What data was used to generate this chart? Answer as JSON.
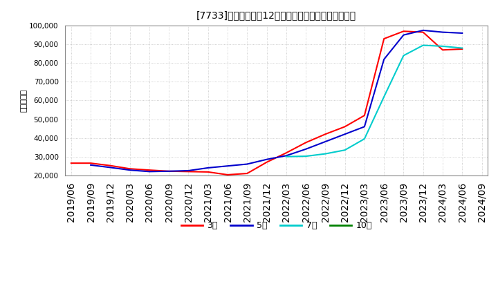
{
  "title": "[7733]　当期純利益12か月移動合計の標準偏差の推移",
  "ylabel": "（百万円）",
  "ylim": [
    20000,
    100000
  ],
  "yticks": [
    20000,
    30000,
    40000,
    50000,
    60000,
    70000,
    80000,
    90000,
    100000
  ],
  "background_color": "#ffffff",
  "grid_color": "#bbbbbb",
  "series": {
    "3年": {
      "color": "#ff0000",
      "data": [
        [
          "2019/06",
          26500
        ],
        [
          "2019/09",
          26500
        ],
        [
          "2019/12",
          25200
        ],
        [
          "2020/03",
          23500
        ],
        [
          "2020/06",
          22800
        ],
        [
          "2020/09",
          22200
        ],
        [
          "2020/12",
          22000
        ],
        [
          "2021/03",
          21800
        ],
        [
          "2021/06",
          20300
        ],
        [
          "2021/09",
          21000
        ],
        [
          "2021/12",
          27000
        ],
        [
          "2022/03",
          32000
        ],
        [
          "2022/06",
          37500
        ],
        [
          "2022/09",
          42000
        ],
        [
          "2022/12",
          46000
        ],
        [
          "2023/03",
          52000
        ],
        [
          "2023/06",
          93000
        ],
        [
          "2023/09",
          97000
        ],
        [
          "2023/12",
          96500
        ],
        [
          "2024/03",
          87000
        ],
        [
          "2024/06",
          87500
        ]
      ]
    },
    "5年": {
      "color": "#0000cc",
      "data": [
        [
          "2019/09",
          25500
        ],
        [
          "2019/12",
          24200
        ],
        [
          "2020/03",
          22800
        ],
        [
          "2020/06",
          22000
        ],
        [
          "2020/09",
          22200
        ],
        [
          "2020/12",
          22500
        ],
        [
          "2021/03",
          24000
        ],
        [
          "2021/06",
          25000
        ],
        [
          "2021/09",
          26000
        ],
        [
          "2021/12",
          28500
        ],
        [
          "2022/03",
          30500
        ],
        [
          "2022/06",
          34000
        ],
        [
          "2022/09",
          38000
        ],
        [
          "2022/12",
          42000
        ],
        [
          "2023/03",
          46000
        ],
        [
          "2023/06",
          82000
        ],
        [
          "2023/09",
          95000
        ],
        [
          "2023/12",
          97500
        ],
        [
          "2024/03",
          96500
        ],
        [
          "2024/06",
          96000
        ]
      ]
    },
    "7年": {
      "color": "#00cccc",
      "data": [
        [
          "2022/03",
          30000
        ],
        [
          "2022/06",
          30200
        ],
        [
          "2022/09",
          31500
        ],
        [
          "2022/12",
          33500
        ],
        [
          "2023/03",
          39500
        ],
        [
          "2023/06",
          62000
        ],
        [
          "2023/09",
          84000
        ],
        [
          "2023/12",
          89500
        ],
        [
          "2024/03",
          89000
        ],
        [
          "2024/06",
          88000
        ]
      ]
    },
    "10年": {
      "color": "#008000",
      "data": []
    }
  },
  "legend_labels": [
    "3年",
    "5年",
    "7年",
    "10年"
  ],
  "legend_colors": [
    "#ff0000",
    "#0000cc",
    "#00cccc",
    "#008000"
  ],
  "xtick_labels": [
    "2019/06",
    "2019/09",
    "2019/12",
    "2020/03",
    "2020/06",
    "2020/09",
    "2020/12",
    "2021/03",
    "2021/06",
    "2021/09",
    "2021/12",
    "2022/03",
    "2022/06",
    "2022/09",
    "2022/12",
    "2023/03",
    "2023/06",
    "2023/09",
    "2023/12",
    "2024/03",
    "2024/06",
    "2024/09"
  ]
}
